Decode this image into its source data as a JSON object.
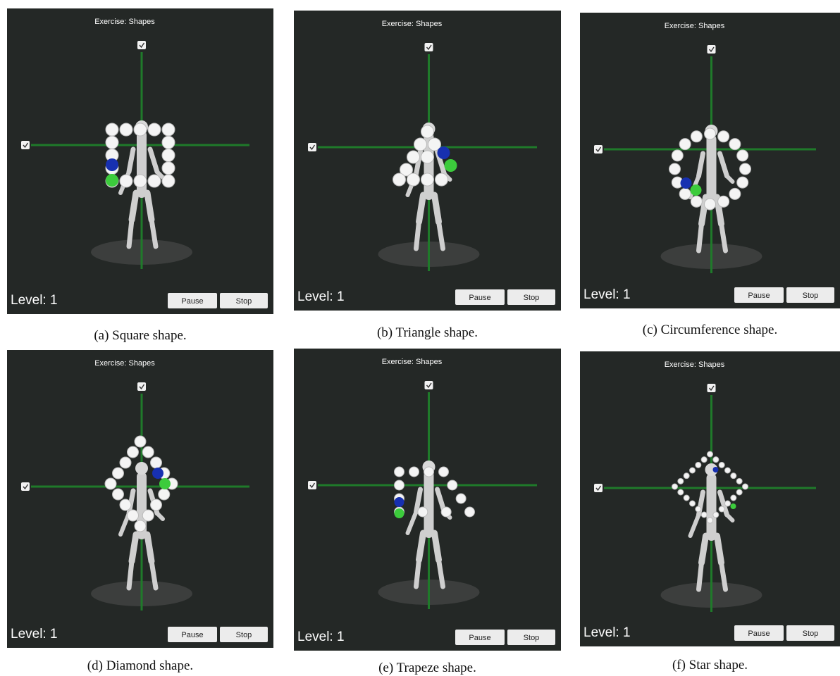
{
  "panels": [
    {
      "title": "Exercise: Shapes",
      "level": "Level: 1",
      "pause": "Pause",
      "stop": "Stop",
      "caption": "(a) Square shape."
    },
    {
      "title": "Exercise: Shapes",
      "level": "Level: 1",
      "pause": "Pause",
      "stop": "Stop",
      "caption": "(b) Triangle shape."
    },
    {
      "title": "Exercise: Shapes",
      "level": "Level: 1",
      "pause": "Pause",
      "stop": "Stop",
      "caption": "(c) Circumference shape."
    },
    {
      "title": "Exercise: Shapes",
      "level": "Level: 1",
      "pause": "Pause",
      "stop": "Stop",
      "caption": "(d) Diamond shape."
    },
    {
      "title": "Exercise: Shapes",
      "level": "Level: 1",
      "pause": "Pause",
      "stop": "Stop",
      "caption": "(e) Trapeze shape."
    },
    {
      "title": "Exercise: Shapes",
      "level": "Level: 1",
      "pause": "Pause",
      "stop": "Stop",
      "caption": "(f) Star shape."
    }
  ]
}
